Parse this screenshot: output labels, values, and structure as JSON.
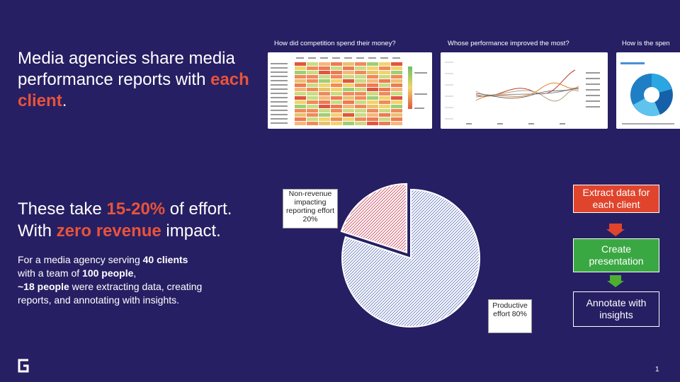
{
  "slide": {
    "headline_pre": "Media agencies share media performance reports with ",
    "headline_hl": "each client",
    "headline_post": ".",
    "sub_line1_pre": "These take ",
    "sub_line1_hl": "15-20%",
    "sub_line1_post": " of effort.",
    "sub_line2_pre": "With ",
    "sub_line2_hl": "zero revenue",
    "sub_line2_post": " impact.",
    "para_1": "For a media agency serving ",
    "para_2": "40 clients",
    "para_3": " with a team of ",
    "para_4": "100 people",
    "para_5": ",",
    "para_6": "~18 people",
    "para_7": " were extracting data, creating reports, and annotating with insights.",
    "page_number": "1"
  },
  "thumbnails": [
    {
      "title": "How did competition spend their money?"
    },
    {
      "title": "Whose performance improved the most?"
    },
    {
      "title": "How is the spen"
    }
  ],
  "pie": {
    "slices": [
      {
        "label": "Non-revenue impacting reporting effort 20%",
        "value": 20,
        "color": "#c8344a"
      },
      {
        "label": "Productive effort 80%",
        "value": 80,
        "color": "#5a6fb5"
      }
    ]
  },
  "steps": [
    {
      "label": "Extract data for each client",
      "color": "#e0442c"
    },
    {
      "label": "Create presentation",
      "color": "#3aa842"
    },
    {
      "label": "Annotate with insights",
      "color": "#271f63"
    }
  ],
  "colors": {
    "background": "#271f63",
    "accent": "#e8533a",
    "arrow_red": "#e0442c",
    "arrow_green": "#4caf30"
  }
}
